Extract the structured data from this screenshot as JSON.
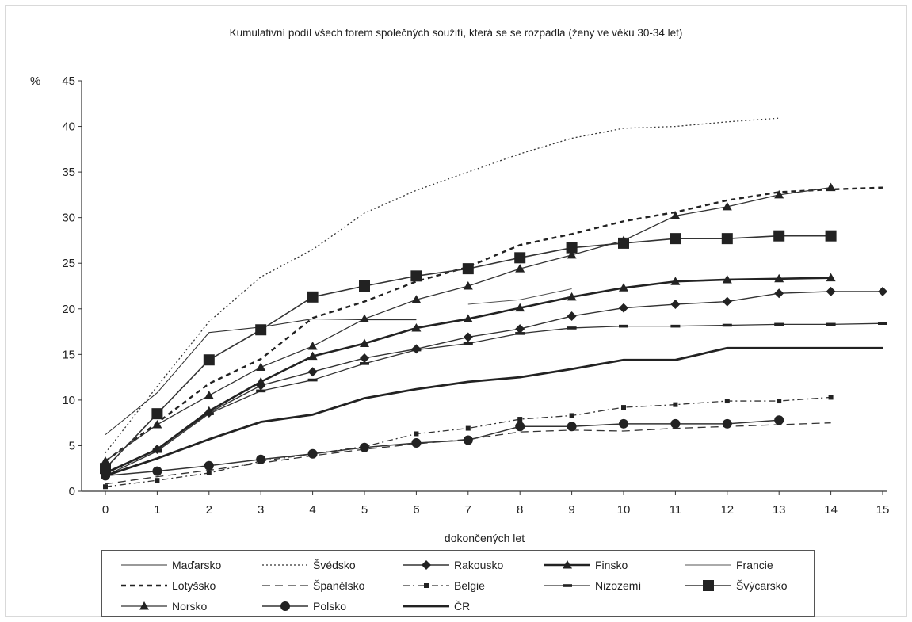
{
  "chart_data": {
    "type": "line",
    "title": "Kumulativní podíl všech forem společných soužití, která se se rozpadla (ženy ve věku 30-34 let)",
    "xlabel": "dokončených let",
    "ylabel": "%",
    "x": [
      0,
      1,
      2,
      3,
      4,
      5,
      6,
      7,
      8,
      9,
      10,
      11,
      12,
      13,
      14,
      15
    ],
    "xlim": [
      0,
      15
    ],
    "ylim": [
      0,
      45
    ],
    "yticks": [
      0,
      5,
      10,
      15,
      20,
      25,
      30,
      35,
      40,
      45
    ],
    "grid": false,
    "legend_position": "bottom",
    "series": [
      {
        "name": "Maďarsko",
        "style": "thin-solid",
        "values": [
          6.2,
          10.8,
          17.4,
          18.0,
          18.9,
          18.8,
          18.8,
          null,
          null,
          null,
          null,
          null,
          null,
          null,
          null,
          null
        ]
      },
      {
        "name": "Švédsko",
        "style": "dotted",
        "values": [
          4.2,
          11.5,
          18.6,
          23.5,
          26.5,
          30.5,
          33.0,
          35.0,
          37.0,
          38.7,
          39.8,
          40.0,
          40.5,
          40.9,
          null,
          null
        ]
      },
      {
        "name": "Rakousko",
        "style": "diamond",
        "values": [
          1.9,
          4.6,
          8.6,
          11.6,
          13.1,
          14.6,
          15.6,
          16.9,
          17.8,
          19.2,
          20.1,
          20.5,
          20.8,
          21.7,
          21.9,
          21.9
        ]
      },
      {
        "name": "Finsko",
        "style": "thick-triangle",
        "values": [
          2.0,
          4.6,
          8.8,
          12.0,
          14.8,
          16.2,
          17.9,
          18.9,
          20.1,
          21.3,
          22.3,
          23.0,
          23.2,
          23.3,
          23.4,
          null
        ]
      },
      {
        "name": "Francie",
        "style": "thin-solid-light",
        "values": [
          null,
          null,
          null,
          null,
          null,
          null,
          null,
          20.5,
          21.0,
          22.2,
          null,
          null,
          null,
          null,
          null,
          null
        ]
      },
      {
        "name": "Lotyšsko",
        "style": "bold-dashed",
        "values": [
          3.3,
          7.5,
          11.8,
          14.5,
          19.0,
          20.8,
          23.0,
          24.6,
          27.0,
          28.2,
          29.6,
          30.6,
          31.9,
          32.8,
          33.1,
          33.3
        ]
      },
      {
        "name": "Španělsko",
        "style": "long-dashed",
        "values": [
          0.8,
          1.6,
          2.3,
          3.1,
          3.9,
          4.6,
          5.2,
          5.7,
          6.5,
          6.7,
          6.6,
          6.9,
          7.1,
          7.3,
          7.5,
          null
        ]
      },
      {
        "name": "Belgie",
        "style": "dashdot-square",
        "values": [
          0.5,
          1.2,
          2.0,
          3.3,
          4.1,
          4.9,
          6.3,
          6.9,
          7.9,
          8.3,
          9.2,
          9.5,
          9.9,
          9.9,
          10.3,
          null
        ]
      },
      {
        "name": "Nizozemí",
        "style": "dash-marker",
        "values": [
          1.7,
          4.4,
          8.5,
          11.0,
          12.2,
          14.0,
          15.5,
          16.2,
          17.3,
          17.9,
          18.1,
          18.1,
          18.2,
          18.3,
          18.3,
          18.4
        ]
      },
      {
        "name": "Švýcarsko",
        "style": "big-square",
        "values": [
          2.5,
          8.5,
          14.4,
          17.7,
          21.3,
          22.5,
          23.6,
          24.4,
          25.6,
          26.7,
          27.2,
          27.7,
          27.7,
          28.0,
          28.0,
          null
        ]
      },
      {
        "name": "Norsko",
        "style": "triangle",
        "values": [
          3.3,
          7.3,
          10.5,
          13.6,
          15.9,
          18.9,
          21.0,
          22.5,
          24.4,
          25.9,
          27.5,
          30.2,
          31.2,
          32.5,
          33.3,
          null
        ]
      },
      {
        "name": "Polsko",
        "style": "circle",
        "values": [
          1.7,
          2.2,
          2.8,
          3.5,
          4.1,
          4.8,
          5.3,
          5.6,
          7.1,
          7.1,
          7.4,
          7.4,
          7.4,
          7.8,
          null,
          null
        ]
      },
      {
        "name": "ČR",
        "style": "thick-solid",
        "values": [
          1.7,
          3.6,
          5.7,
          7.6,
          8.4,
          10.2,
          11.2,
          12.0,
          12.5,
          13.4,
          14.4,
          14.4,
          15.7,
          15.7,
          15.7,
          15.7
        ]
      }
    ]
  }
}
